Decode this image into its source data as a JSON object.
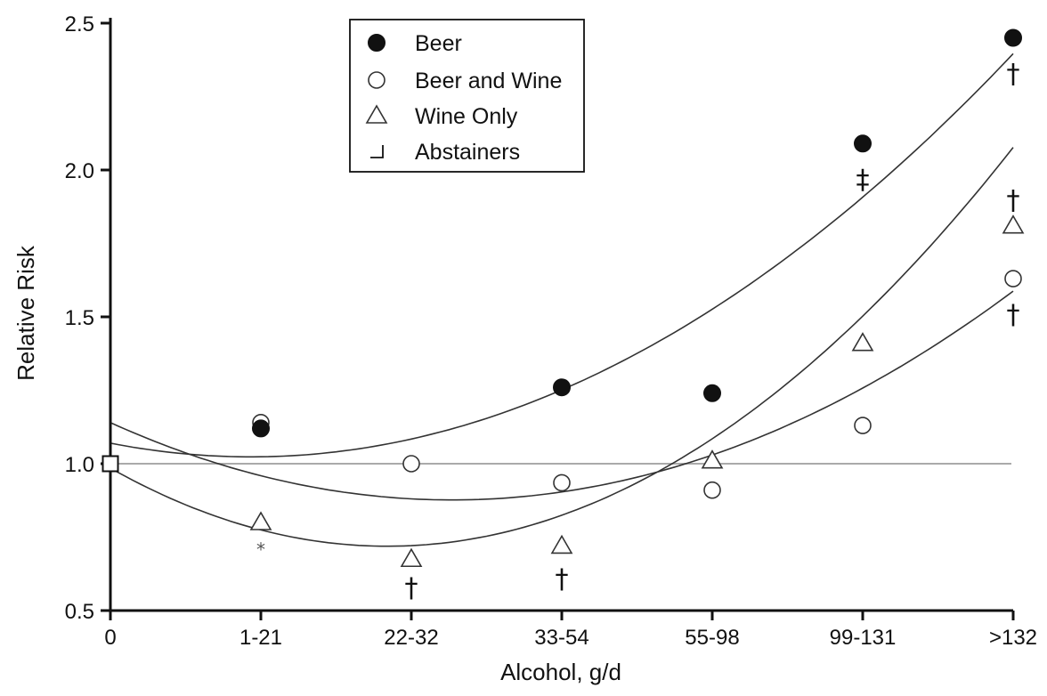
{
  "chart_data": {
    "type": "scatter",
    "xlabel": "Alcohol, g/d",
    "ylabel": "Relative Risk",
    "categories": [
      "0",
      "1-21",
      "22-32",
      "33-54",
      "55-98",
      "99-131",
      ">132"
    ],
    "y_ticks": [
      "0.5",
      "1.0",
      "1.5",
      "2.0",
      "2.5"
    ],
    "ylim": [
      0.5,
      2.5
    ],
    "reference_line": 1.0,
    "grid": false,
    "legend_position": "top-center",
    "legend": [
      {
        "marker": "●",
        "label": "Beer"
      },
      {
        "marker": "○",
        "label": "Beer and Wine"
      },
      {
        "marker": "△",
        "label": "Wine Only"
      },
      {
        "marker": "⌋",
        "label": "Abstainers"
      }
    ],
    "series": [
      {
        "name": "Beer",
        "marker": "filled-circle",
        "values": [
          null,
          1.12,
          null,
          1.26,
          1.24,
          2.09,
          2.45
        ]
      },
      {
        "name": "Beer and Wine",
        "marker": "open-circle",
        "values": [
          null,
          1.14,
          1.0,
          0.935,
          0.91,
          1.13,
          1.63
        ]
      },
      {
        "name": "Wine Only",
        "marker": "open-triangle",
        "values": [
          null,
          0.8,
          0.675,
          0.72,
          1.01,
          1.41,
          1.81
        ]
      },
      {
        "name": "Abstainers",
        "marker": "open-square",
        "values": [
          1.0,
          null,
          null,
          null,
          null,
          null,
          null
        ]
      }
    ],
    "fit_curves": [
      {
        "series": "Beer",
        "quadratic": [
          1.07,
          -0.1,
          0.0535
        ]
      },
      {
        "series": "Beer and Wine",
        "quadratic": [
          1.14,
          -0.232,
          0.0511
        ]
      },
      {
        "series": "Wine Only",
        "quadratic": [
          0.985,
          -0.289,
          0.0785
        ]
      }
    ],
    "annotations": [
      {
        "text": "*",
        "x": "1-21",
        "y": 0.72
      },
      {
        "text": "†",
        "x": "22-32",
        "y": 0.58
      },
      {
        "text": "†",
        "x": "33-54",
        "y": 0.61
      },
      {
        "text": "‡",
        "x": "99-131",
        "y": 1.97
      },
      {
        "text": "†",
        "x": ">132",
        "y": 2.33
      },
      {
        "text": "†",
        "x": ">132",
        "y": 1.9
      },
      {
        "text": "†",
        "x": ">132",
        "y": 1.51
      }
    ]
  }
}
